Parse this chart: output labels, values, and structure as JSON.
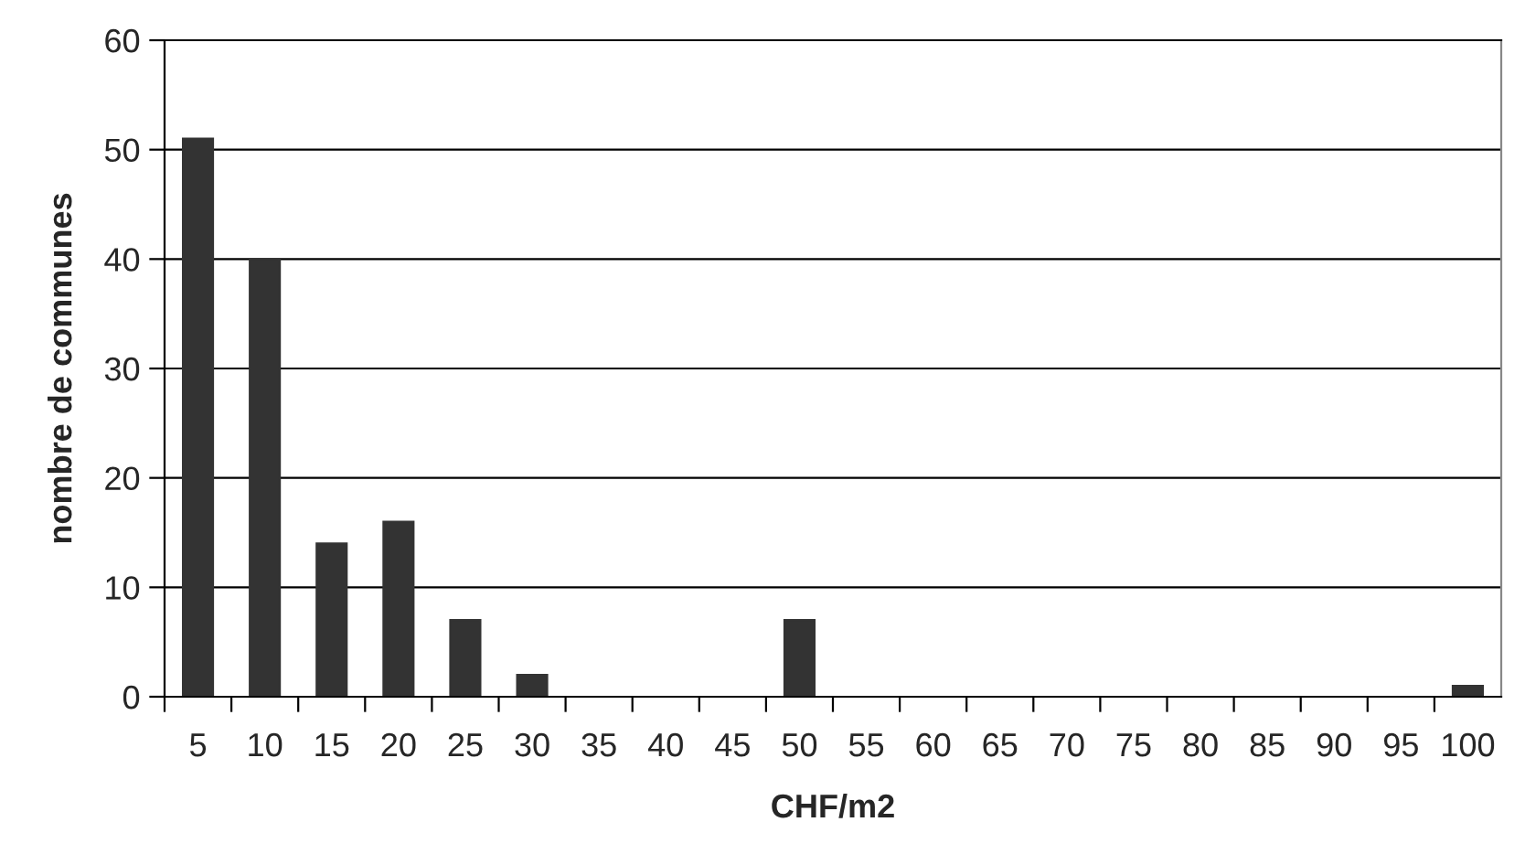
{
  "chart_data": {
    "type": "bar",
    "xlabel": "CHF/m2",
    "ylabel": "nombre de communes",
    "categories": [
      "5",
      "10",
      "15",
      "20",
      "25",
      "30",
      "35",
      "40",
      "45",
      "50",
      "55",
      "60",
      "65",
      "70",
      "75",
      "80",
      "85",
      "90",
      "95",
      "100"
    ],
    "values": [
      51,
      40,
      14,
      16,
      7,
      2,
      0,
      0,
      0,
      7,
      0,
      0,
      0,
      0,
      0,
      0,
      0,
      0,
      0,
      1
    ],
    "color": "#333333",
    "ylim": [
      0,
      60
    ],
    "yticks": [
      0,
      10,
      20,
      30,
      40,
      50,
      60
    ],
    "grid": "y",
    "legend": false
  }
}
